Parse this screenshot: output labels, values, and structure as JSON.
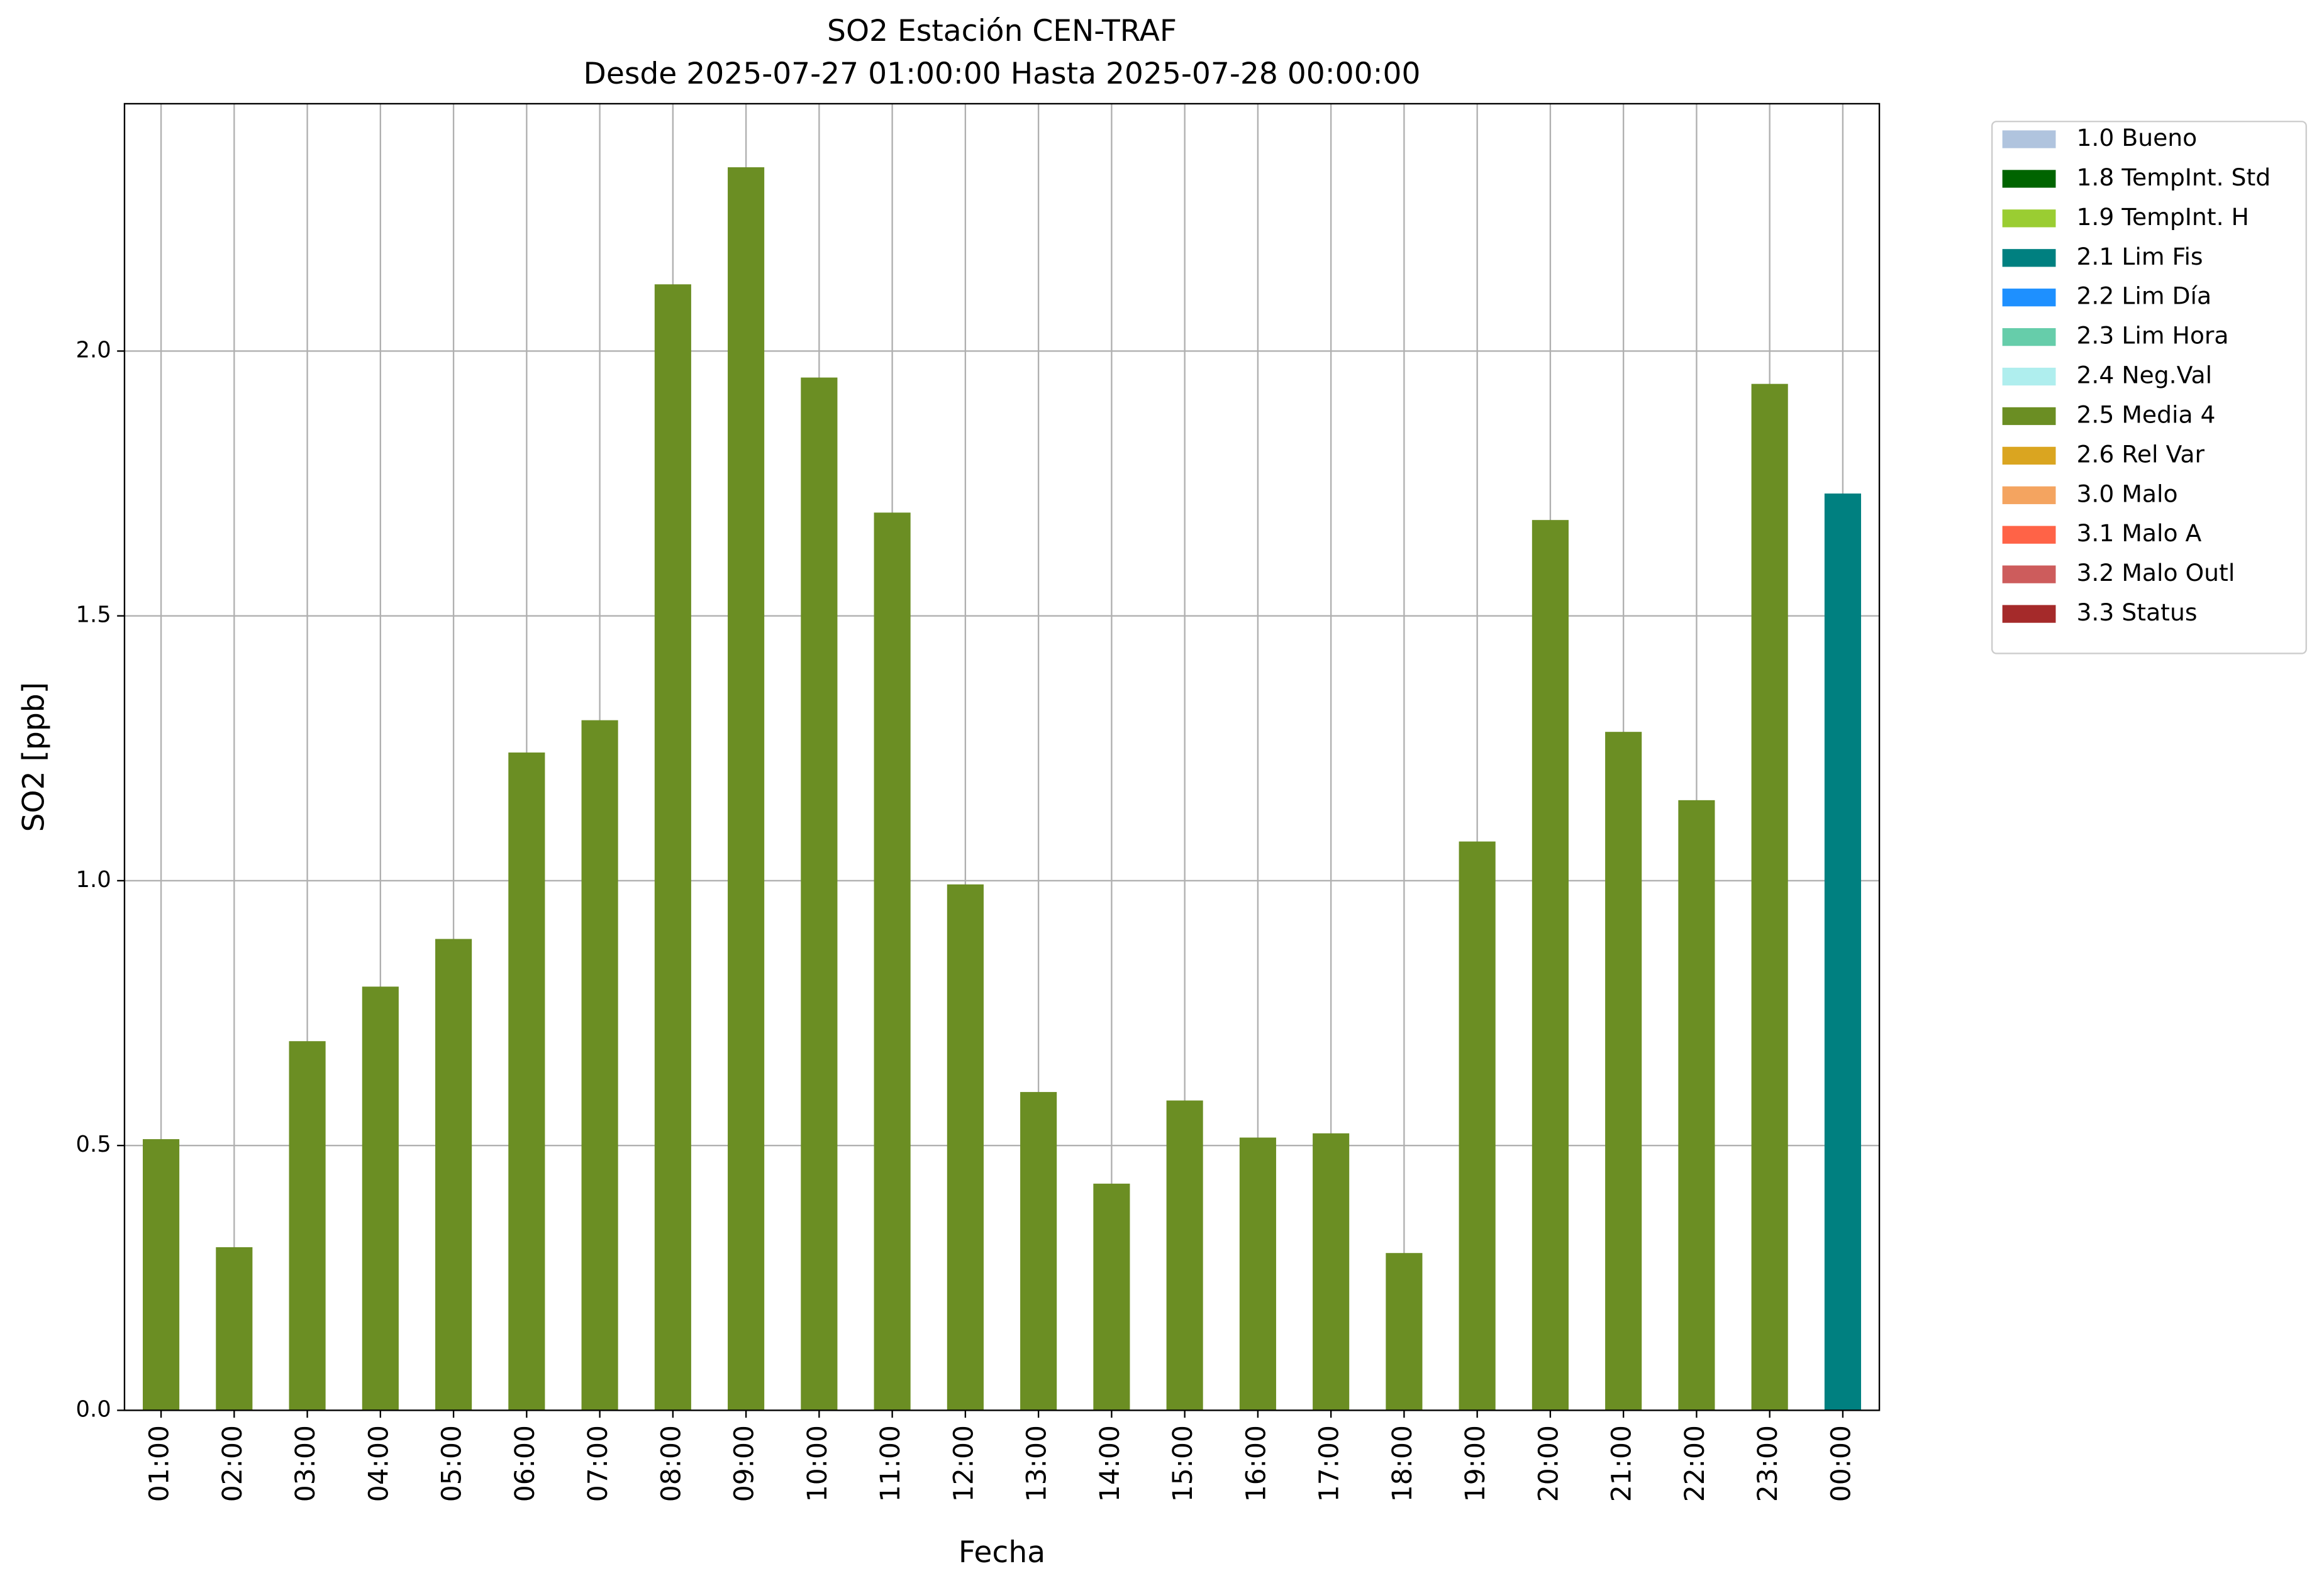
{
  "chart_data": {
    "type": "bar",
    "stacked": true,
    "title": "SO2 Estación CEN-TRAF",
    "subtitle": "Desde 2025-07-27 01:00:00 Hasta 2025-07-28 00:00:00",
    "x_label": "Fecha",
    "y_label": "SO2 [ppb]",
    "categories": [
      "01:00",
      "02:00",
      "03:00",
      "04:00",
      "05:00",
      "06:00",
      "07:00",
      "08:00",
      "09:00",
      "10:00",
      "11:00",
      "12:00",
      "13:00",
      "14:00",
      "15:00",
      "16:00",
      "17:00",
      "18:00",
      "19:00",
      "20:00",
      "21:00",
      "22:00",
      "23:00",
      "00:00"
    ],
    "series": [
      {
        "name": "1.0 Bueno",
        "color": "#b0c4de",
        "values": [
          null,
          null,
          null,
          null,
          null,
          null,
          null,
          null,
          null,
          null,
          null,
          null,
          null,
          null,
          null,
          null,
          null,
          null,
          null,
          null,
          null,
          null,
          null,
          null
        ]
      },
      {
        "name": "1.8 TempInt. Std",
        "color": "#006400",
        "values": [
          null,
          null,
          null,
          null,
          null,
          null,
          null,
          null,
          null,
          null,
          null,
          null,
          null,
          null,
          null,
          null,
          null,
          null,
          null,
          null,
          null,
          null,
          null,
          null
        ]
      },
      {
        "name": "1.9 TempInt. H",
        "color": "#9acd32",
        "values": [
          null,
          null,
          null,
          null,
          null,
          null,
          null,
          null,
          null,
          null,
          null,
          null,
          null,
          null,
          null,
          null,
          null,
          null,
          null,
          null,
          null,
          null,
          null,
          null
        ]
      },
      {
        "name": "2.1 Lim Fis",
        "color": "#008080",
        "values": [
          null,
          null,
          null,
          null,
          null,
          null,
          null,
          null,
          null,
          null,
          null,
          null,
          null,
          null,
          null,
          null,
          null,
          null,
          null,
          null,
          null,
          null,
          null,
          1.731
        ]
      },
      {
        "name": "2.2 Lim Día",
        "color": "#1e90ff",
        "values": [
          null,
          null,
          null,
          null,
          null,
          null,
          null,
          null,
          null,
          null,
          null,
          null,
          null,
          null,
          null,
          null,
          null,
          null,
          null,
          null,
          null,
          null,
          null,
          null
        ]
      },
      {
        "name": "2.3 Lim Hora",
        "color": "#66cdaa",
        "values": [
          null,
          null,
          null,
          null,
          null,
          null,
          null,
          null,
          null,
          null,
          null,
          null,
          null,
          null,
          null,
          null,
          null,
          null,
          null,
          null,
          null,
          null,
          null,
          null
        ]
      },
      {
        "name": "2.4 Neg.Val",
        "color": "#afeeee",
        "values": [
          null,
          null,
          null,
          null,
          null,
          null,
          null,
          null,
          null,
          null,
          null,
          null,
          null,
          null,
          null,
          null,
          null,
          null,
          null,
          null,
          null,
          null,
          null,
          null
        ]
      },
      {
        "name": "2.5 Media 4",
        "color": "#6b8e23",
        "values": [
          0.512,
          0.308,
          0.697,
          0.8,
          0.89,
          1.242,
          1.303,
          2.126,
          2.347,
          1.95,
          1.695,
          0.993,
          0.601,
          0.428,
          0.585,
          0.515,
          0.523,
          0.297,
          1.074,
          1.681,
          1.281,
          1.152,
          1.938,
          null
        ]
      },
      {
        "name": "2.6 Rel Var",
        "color": "#daa520",
        "values": [
          null,
          null,
          null,
          null,
          null,
          null,
          null,
          null,
          null,
          null,
          null,
          null,
          null,
          null,
          null,
          null,
          null,
          null,
          null,
          null,
          null,
          null,
          null,
          null
        ]
      },
      {
        "name": "3.0 Malo",
        "color": "#f4a460",
        "values": [
          null,
          null,
          null,
          null,
          null,
          null,
          null,
          null,
          null,
          null,
          null,
          null,
          null,
          null,
          null,
          null,
          null,
          null,
          null,
          null,
          null,
          null,
          null,
          null
        ]
      },
      {
        "name": "3.1 Malo A",
        "color": "#ff6347",
        "values": [
          null,
          null,
          null,
          null,
          null,
          null,
          null,
          null,
          null,
          null,
          null,
          null,
          null,
          null,
          null,
          null,
          null,
          null,
          null,
          null,
          null,
          null,
          null,
          null
        ]
      },
      {
        "name": "3.2 Malo Outl",
        "color": "#cd5c5c",
        "values": [
          null,
          null,
          null,
          null,
          null,
          null,
          null,
          null,
          null,
          null,
          null,
          null,
          null,
          null,
          null,
          null,
          null,
          null,
          null,
          null,
          null,
          null,
          null,
          null
        ]
      },
      {
        "name": "3.3 Status",
        "color": "#a52a2a",
        "values": [
          null,
          null,
          null,
          null,
          null,
          null,
          null,
          null,
          null,
          null,
          null,
          null,
          null,
          null,
          null,
          null,
          null,
          null,
          null,
          null,
          null,
          null,
          null,
          null
        ]
      }
    ],
    "ylim": [
      0,
      2.467
    ],
    "yticks": [
      {
        "value": 0,
        "label": "0.0"
      },
      0.5,
      {
        "value": 1,
        "label": "1.0"
      },
      1.5,
      {
        "value": 2,
        "label": "2.0"
      }
    ],
    "grid": true,
    "legend": "outside right"
  }
}
